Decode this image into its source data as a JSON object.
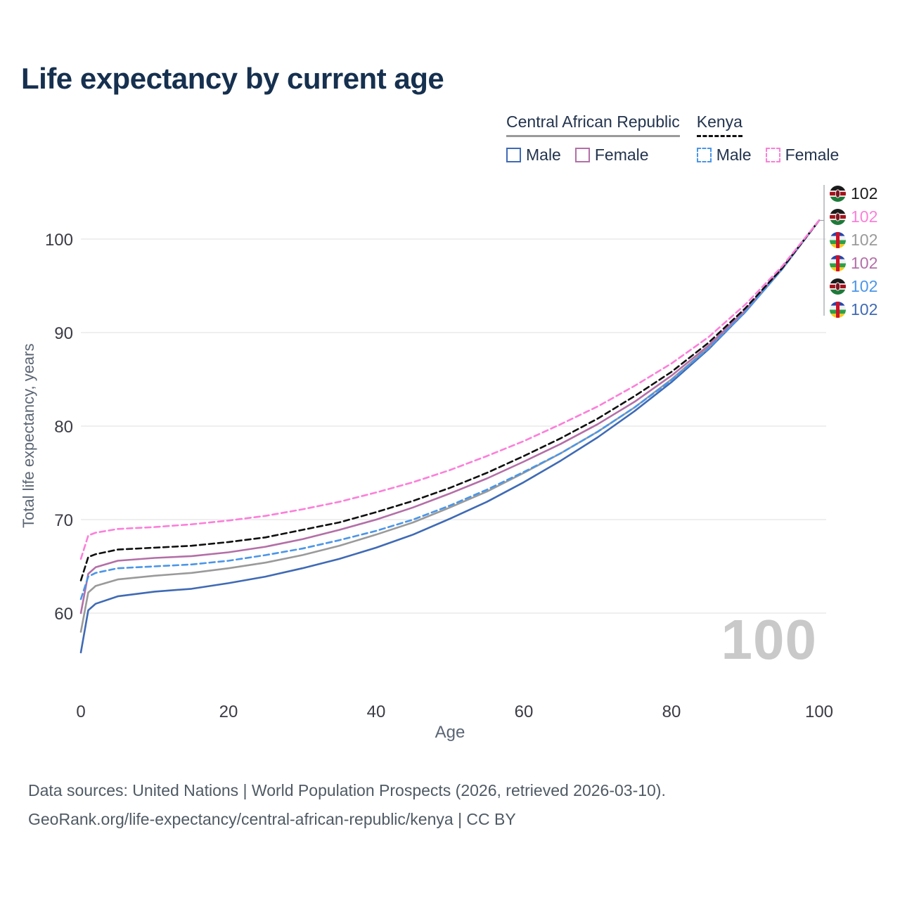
{
  "title": "Life expectancy by current age",
  "legend": {
    "groups": [
      {
        "label": "Central African Republic",
        "line_color": "#9a9a9a",
        "line_style": "solid",
        "items": [
          {
            "label": "Male",
            "color": "#3f6ab5",
            "dashed": false
          },
          {
            "label": "Female",
            "color": "#b36fa7",
            "dashed": false
          }
        ]
      },
      {
        "label": "Kenya",
        "line_color": "#101010",
        "line_style": "dashed",
        "items": [
          {
            "label": "Male",
            "color": "#4b96e8",
            "dashed": true
          },
          {
            "label": "Female",
            "color": "#fc7fd9",
            "dashed": true
          }
        ]
      }
    ]
  },
  "chart_data": {
    "type": "line",
    "title": "Life expectancy by current age",
    "xlabel": "Age",
    "ylabel": "Total life expectancy, years",
    "xlim": [
      0,
      100
    ],
    "ylim": [
      55,
      104
    ],
    "x_ticks": [
      0,
      20,
      40,
      60,
      80,
      100
    ],
    "y_ticks": [
      60,
      70,
      80,
      90,
      100
    ],
    "grid": "horizontal",
    "legend_position": "top-right",
    "x": [
      0,
      1,
      2,
      5,
      10,
      15,
      20,
      25,
      30,
      35,
      40,
      45,
      50,
      55,
      60,
      65,
      70,
      75,
      80,
      85,
      90,
      95,
      100
    ],
    "series": [
      {
        "id": "car-male",
        "name": "Central African Republic — Male",
        "color": "#3f6ab5",
        "dashed": false,
        "values": [
          55.8,
          60.3,
          61.0,
          61.8,
          62.3,
          62.6,
          63.2,
          63.9,
          64.8,
          65.8,
          67.0,
          68.4,
          70.1,
          71.9,
          74.0,
          76.3,
          78.8,
          81.6,
          84.7,
          88.2,
          92.2,
          96.8,
          102.0
        ]
      },
      {
        "id": "car-both",
        "name": "Central African Republic — Both sexes",
        "color": "#9a9a9a",
        "dashed": false,
        "values": [
          58.0,
          62.2,
          62.9,
          63.6,
          64.0,
          64.3,
          64.8,
          65.4,
          66.2,
          67.2,
          68.4,
          69.7,
          71.3,
          73.0,
          75.0,
          77.1,
          79.4,
          82.0,
          85.0,
          88.4,
          92.3,
          96.8,
          102.0
        ]
      },
      {
        "id": "car-female",
        "name": "Central African Republic — Female",
        "color": "#b36fa7",
        "dashed": false,
        "values": [
          60.0,
          64.2,
          64.9,
          65.6,
          65.9,
          66.1,
          66.5,
          67.1,
          67.9,
          68.9,
          70.0,
          71.3,
          72.8,
          74.4,
          76.2,
          78.1,
          80.2,
          82.6,
          85.4,
          88.6,
          92.4,
          96.9,
          102.0
        ]
      },
      {
        "id": "kenya-male",
        "name": "Kenya — Male",
        "color": "#4b96e8",
        "dashed": true,
        "values": [
          61.5,
          63.9,
          64.3,
          64.8,
          65.0,
          65.2,
          65.6,
          66.2,
          66.9,
          67.8,
          68.8,
          70.0,
          71.5,
          73.2,
          75.1,
          77.1,
          79.4,
          82.0,
          84.9,
          88.3,
          92.2,
          96.8,
          102.0
        ]
      },
      {
        "id": "kenya-both",
        "name": "Kenya — Both sexes",
        "color": "#101010",
        "dashed": true,
        "values": [
          63.5,
          66.0,
          66.3,
          66.8,
          67.0,
          67.2,
          67.6,
          68.1,
          68.9,
          69.7,
          70.8,
          72.0,
          73.4,
          75.0,
          76.8,
          78.7,
          80.8,
          83.2,
          85.8,
          88.9,
          92.6,
          96.9,
          102.0
        ]
      },
      {
        "id": "kenya-female",
        "name": "Kenya — Female",
        "color": "#fc7fd9",
        "dashed": true,
        "values": [
          65.8,
          68.3,
          68.6,
          69.0,
          69.2,
          69.5,
          69.9,
          70.4,
          71.1,
          71.9,
          72.9,
          74.0,
          75.3,
          76.8,
          78.4,
          80.2,
          82.1,
          84.3,
          86.7,
          89.5,
          93.0,
          97.1,
          102.0
        ]
      }
    ]
  },
  "end_labels": [
    {
      "value": "102",
      "color": "#1a1a1a",
      "flag": "kenya"
    },
    {
      "value": "102",
      "color": "#fc7fd9",
      "flag": "kenya"
    },
    {
      "value": "102",
      "color": "#9a9a9a",
      "flag": "car"
    },
    {
      "value": "102",
      "color": "#b36fa7",
      "flag": "car"
    },
    {
      "value": "102",
      "color": "#4b96e8",
      "flag": "kenya"
    },
    {
      "value": "102",
      "color": "#3f6ab5",
      "flag": "car"
    }
  ],
  "age_watermark": "100",
  "footer": {
    "line1": "Data sources: United Nations | World Population Prospects (2026, retrieved 2026-03-10).",
    "line2": "GeoRank.org/life-expectancy/central-african-republic/kenya | CC BY"
  }
}
